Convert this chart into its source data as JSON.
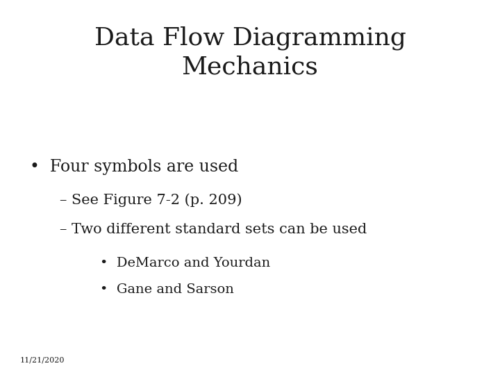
{
  "title_line1": "Data Flow Diagramming",
  "title_line2": "Mechanics",
  "bullet1": "Four symbols are used",
  "sub1": "– See Figure 7-2 (p. 209)",
  "sub2": "– Two different standard sets can be used",
  "subsub1": "DeMarco and Yourdan",
  "subsub2": "Gane and Sarson",
  "footer": "11/21/2020",
  "bg_color": "#ffffff",
  "text_color": "#1a1a1a",
  "title_fontsize": 26,
  "bullet_fontsize": 17,
  "sub_fontsize": 15,
  "subsub_fontsize": 14,
  "footer_fontsize": 8,
  "font_family": "DejaVu Serif"
}
